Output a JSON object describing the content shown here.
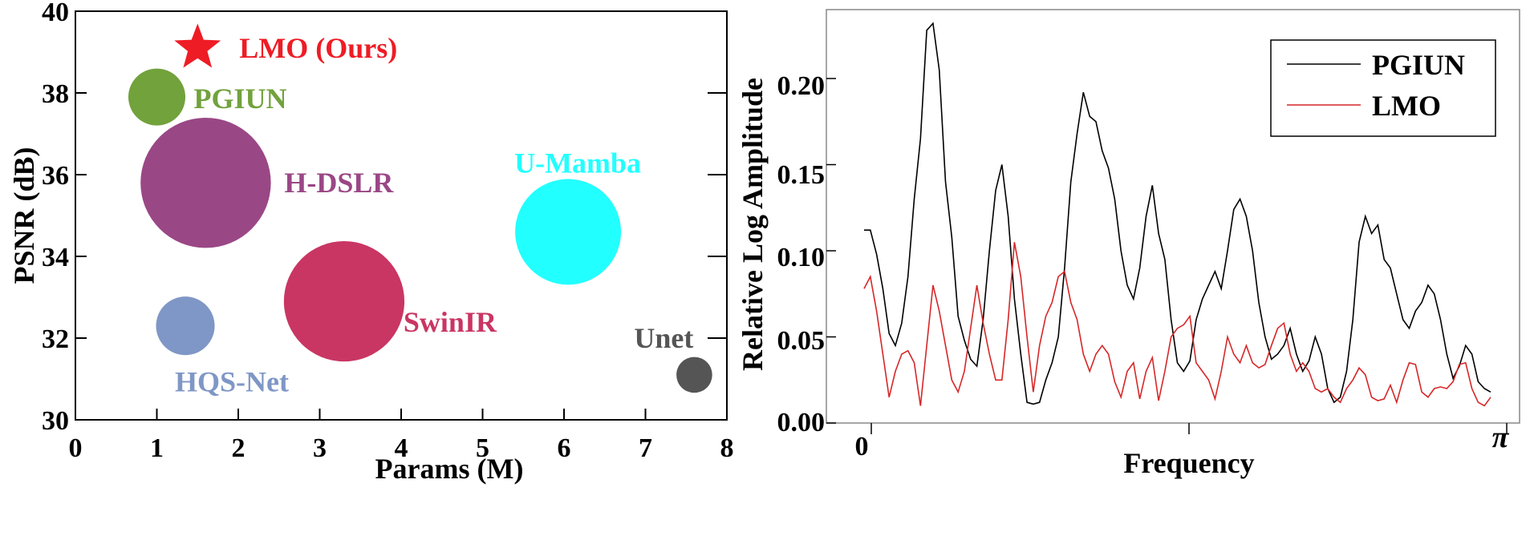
{
  "chart_data": [
    {
      "type": "scatter",
      "title": "",
      "xlabel": "Params (M)",
      "ylabel": "PSNR (dB)",
      "xlim": [
        0,
        8
      ],
      "ylim": [
        30,
        40
      ],
      "xticks": [
        "0",
        "1",
        "2",
        "3",
        "4",
        "5",
        "6",
        "7",
        "8"
      ],
      "yticks": [
        "30",
        "32",
        "34",
        "36",
        "38",
        "40"
      ],
      "bubble_size": "radius proportional to model size (visual)",
      "points": [
        {
          "label": "LMO (Ours)",
          "x": 1.5,
          "y": 39.1,
          "r": 0.3,
          "marker": "star",
          "color": "#ee1c25",
          "label_color": "#ee1c25"
        },
        {
          "label": "PGIUN",
          "x": 1.0,
          "y": 37.9,
          "r": 0.35,
          "marker": "circle",
          "color": "#72a23c",
          "label_color": "#72a23c"
        },
        {
          "label": "H-DSLR",
          "x": 1.6,
          "y": 35.8,
          "r": 0.8,
          "marker": "circle",
          "color": "#9a4786",
          "label_color": "#9a4786"
        },
        {
          "label": "U-Mamba",
          "x": 6.05,
          "y": 34.6,
          "r": 0.65,
          "marker": "circle",
          "color": "#22ffff",
          "label_color": "#22ffff"
        },
        {
          "label": "SwinIR",
          "x": 3.3,
          "y": 32.9,
          "r": 0.74,
          "marker": "circle",
          "color": "#c93663",
          "label_color": "#c93663"
        },
        {
          "label": "HQS-Net",
          "x": 1.35,
          "y": 32.3,
          "r": 0.36,
          "marker": "circle",
          "color": "#7f97c6",
          "label_color": "#7f97c6"
        },
        {
          "label": "Unet",
          "x": 7.6,
          "y": 31.1,
          "r": 0.22,
          "marker": "circle",
          "color": "#555555",
          "label_color": "#555555"
        }
      ]
    },
    {
      "type": "line",
      "title": "",
      "xlabel": "Frequency",
      "ylabel": "Relative Log Amplitude",
      "xlim": [
        0,
        1
      ],
      "ylim": [
        0,
        0.24
      ],
      "x_tick_labels": [
        "0",
        "π"
      ],
      "yticks": [
        "0.00",
        "0.05",
        "0.10",
        "0.15",
        "0.20"
      ],
      "grid": false,
      "legend": "top-right",
      "x": [
        0.0,
        0.01,
        0.02,
        0.03,
        0.04,
        0.05,
        0.06,
        0.07,
        0.08,
        0.09,
        0.1,
        0.11,
        0.12,
        0.13,
        0.14,
        0.15,
        0.16,
        0.17,
        0.18,
        0.19,
        0.2,
        0.21,
        0.22,
        0.23,
        0.24,
        0.25,
        0.26,
        0.27,
        0.28,
        0.29,
        0.3,
        0.31,
        0.32,
        0.33,
        0.34,
        0.35,
        0.36,
        0.37,
        0.38,
        0.39,
        0.4,
        0.41,
        0.42,
        0.43,
        0.44,
        0.45,
        0.46,
        0.47,
        0.48,
        0.49,
        0.5,
        0.51,
        0.52,
        0.53,
        0.54,
        0.55,
        0.56,
        0.57,
        0.58,
        0.59,
        0.6,
        0.61,
        0.62,
        0.63,
        0.64,
        0.65,
        0.66,
        0.67,
        0.68,
        0.69,
        0.7,
        0.71,
        0.72,
        0.73,
        0.74,
        0.75,
        0.76,
        0.77,
        0.78,
        0.79,
        0.8,
        0.81,
        0.82,
        0.83,
        0.84,
        0.85,
        0.86,
        0.87,
        0.88,
        0.89,
        0.9,
        0.91,
        0.92,
        0.93,
        0.94,
        0.95,
        0.96,
        0.97,
        0.98,
        0.99,
        1.0
      ],
      "series": [
        {
          "name": "PGIUN",
          "color": "#000000",
          "values": [
            0.112,
            0.112,
            0.098,
            0.078,
            0.052,
            0.045,
            0.058,
            0.085,
            0.13,
            0.165,
            0.228,
            0.232,
            0.205,
            0.14,
            0.108,
            0.062,
            0.048,
            0.037,
            0.033,
            0.06,
            0.1,
            0.135,
            0.15,
            0.12,
            0.072,
            0.04,
            0.012,
            0.011,
            0.012,
            0.025,
            0.035,
            0.05,
            0.09,
            0.14,
            0.168,
            0.192,
            0.178,
            0.175,
            0.158,
            0.148,
            0.13,
            0.1,
            0.08,
            0.072,
            0.09,
            0.12,
            0.138,
            0.11,
            0.095,
            0.06,
            0.035,
            0.03,
            0.036,
            0.06,
            0.072,
            0.08,
            0.088,
            0.078,
            0.1,
            0.124,
            0.13,
            0.12,
            0.1,
            0.07,
            0.05,
            0.037,
            0.04,
            0.045,
            0.055,
            0.04,
            0.03,
            0.036,
            0.05,
            0.04,
            0.02,
            0.012,
            0.015,
            0.03,
            0.06,
            0.105,
            0.12,
            0.11,
            0.115,
            0.095,
            0.09,
            0.075,
            0.06,
            0.055,
            0.065,
            0.07,
            0.08,
            0.075,
            0.06,
            0.04,
            0.026,
            0.033,
            0.045,
            0.04,
            0.024,
            0.02,
            0.018
          ]
        },
        {
          "name": "LMO",
          "color": "#d62728",
          "values": [
            0.078,
            0.085,
            0.065,
            0.04,
            0.015,
            0.03,
            0.04,
            0.042,
            0.035,
            0.01,
            0.045,
            0.08,
            0.065,
            0.045,
            0.025,
            0.018,
            0.03,
            0.055,
            0.08,
            0.058,
            0.04,
            0.025,
            0.025,
            0.06,
            0.105,
            0.085,
            0.05,
            0.018,
            0.045,
            0.062,
            0.07,
            0.085,
            0.088,
            0.07,
            0.06,
            0.04,
            0.03,
            0.04,
            0.045,
            0.04,
            0.024,
            0.015,
            0.03,
            0.035,
            0.014,
            0.03,
            0.038,
            0.013,
            0.03,
            0.05,
            0.055,
            0.057,
            0.062,
            0.035,
            0.03,
            0.025,
            0.014,
            0.03,
            0.05,
            0.04,
            0.035,
            0.045,
            0.035,
            0.032,
            0.034,
            0.045,
            0.055,
            0.058,
            0.04,
            0.03,
            0.035,
            0.03,
            0.02,
            0.018,
            0.02,
            0.015,
            0.012,
            0.02,
            0.025,
            0.032,
            0.028,
            0.015,
            0.013,
            0.014,
            0.022,
            0.012,
            0.025,
            0.035,
            0.034,
            0.018,
            0.015,
            0.02,
            0.021,
            0.02,
            0.024,
            0.034,
            0.035,
            0.02,
            0.012,
            0.01,
            0.015
          ]
        }
      ]
    }
  ]
}
